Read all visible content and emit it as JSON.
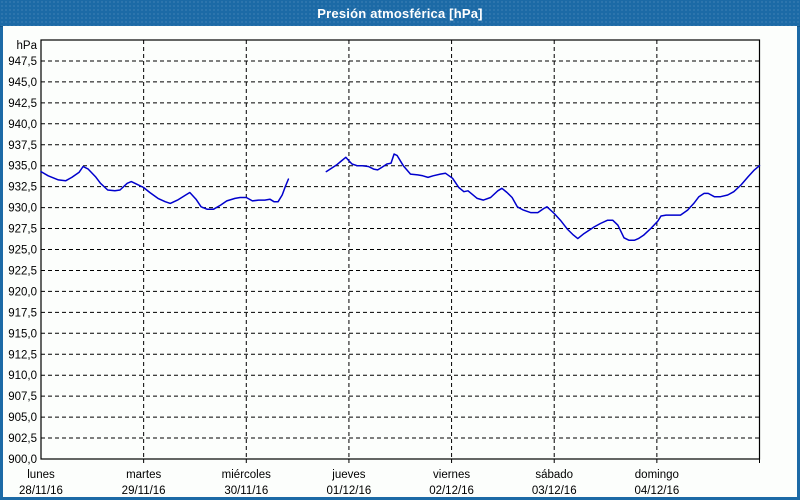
{
  "window": {
    "title": "Presión atmosférica [hPa]",
    "title_bar_color": "#1c6aa6",
    "border_color": "#1c6aa6",
    "background_color": "#fcfefc"
  },
  "chart_data": {
    "type": "line",
    "title": "Presión atmosférica [hPa]",
    "unit_label": "hPa",
    "line_color": "#0000cd",
    "grid_color": "#000000",
    "text_color": "#000000",
    "grid_style": "dashed",
    "legend_position": "none",
    "y_axis": {
      "min": 900,
      "max": 950,
      "tick_step": 2.5,
      "tick_values": [
        947.5,
        945.0,
        942.5,
        940.0,
        937.5,
        935.0,
        932.5,
        930.0,
        927.5,
        925.0,
        922.5,
        920.0,
        917.5,
        915.0,
        912.5,
        910.0,
        907.5,
        905.0,
        902.5,
        900.0
      ],
      "tick_labels": [
        "947,5",
        "945,0",
        "942,5",
        "940,0",
        "937,5",
        "935,0",
        "932,5",
        "930,0",
        "927,5",
        "925,0",
        "922,5",
        "920,0",
        "917,5",
        "915,0",
        "912,5",
        "910,0",
        "907,5",
        "905,0",
        "902,5",
        "900,0"
      ]
    },
    "x_axis": {
      "unit": "days",
      "span_days": 7,
      "days": [
        {
          "name": "lunes",
          "date": "28/11/16"
        },
        {
          "name": "martes",
          "date": "29/11/16"
        },
        {
          "name": "miércoles",
          "date": "30/11/16"
        },
        {
          "name": "jueves",
          "date": "01/12/16"
        },
        {
          "name": "viernes",
          "date": "02/12/16"
        },
        {
          "name": "sábado",
          "date": "03/12/16"
        },
        {
          "name": "domingo",
          "date": "04/12/16"
        }
      ]
    },
    "series": [
      {
        "name": "presión atmosférica",
        "segments": [
          [
            [
              0.0,
              934.3
            ],
            [
              0.07,
              933.8
            ],
            [
              0.17,
              933.3
            ],
            [
              0.24,
              933.2
            ],
            [
              0.3,
              933.6
            ],
            [
              0.37,
              934.2
            ],
            [
              0.41,
              934.9
            ],
            [
              0.46,
              934.6
            ],
            [
              0.53,
              933.7
            ],
            [
              0.58,
              932.9
            ],
            [
              0.65,
              932.1
            ],
            [
              0.72,
              932.0
            ],
            [
              0.77,
              932.1
            ],
            [
              0.84,
              932.9
            ],
            [
              0.88,
              933.1
            ],
            [
              0.93,
              932.8
            ],
            [
              1.0,
              932.4
            ],
            [
              1.06,
              931.8
            ],
            [
              1.14,
              931.1
            ],
            [
              1.21,
              930.7
            ],
            [
              1.26,
              930.5
            ],
            [
              1.33,
              930.9
            ],
            [
              1.41,
              931.5
            ],
            [
              1.45,
              931.8
            ],
            [
              1.51,
              931.0
            ],
            [
              1.56,
              930.1
            ],
            [
              1.62,
              929.8
            ],
            [
              1.68,
              929.8
            ],
            [
              1.75,
              930.3
            ],
            [
              1.81,
              930.8
            ],
            [
              1.89,
              931.1
            ],
            [
              1.94,
              931.2
            ],
            [
              2.0,
              931.2
            ],
            [
              2.06,
              930.8
            ],
            [
              2.12,
              930.9
            ],
            [
              2.18,
              930.9
            ],
            [
              2.23,
              931.0
            ],
            [
              2.27,
              930.7
            ],
            [
              2.31,
              930.7
            ],
            [
              2.35,
              931.5
            ],
            [
              2.38,
              932.5
            ],
            [
              2.41,
              933.4
            ]
          ],
          [
            [
              2.78,
              934.3
            ],
            [
              2.83,
              934.7
            ],
            [
              2.88,
              935.1
            ],
            [
              2.92,
              935.5
            ],
            [
              2.97,
              936.0
            ],
            [
              3.0,
              935.6
            ],
            [
              3.03,
              935.2
            ],
            [
              3.08,
              935.0
            ],
            [
              3.13,
              935.0
            ],
            [
              3.19,
              934.9
            ],
            [
              3.24,
              934.6
            ],
            [
              3.28,
              934.5
            ],
            [
              3.32,
              934.8
            ],
            [
              3.37,
              935.2
            ],
            [
              3.41,
              935.3
            ],
            [
              3.44,
              936.4
            ],
            [
              3.47,
              936.2
            ],
            [
              3.53,
              935.0
            ],
            [
              3.6,
              934.0
            ],
            [
              3.67,
              933.9
            ],
            [
              3.72,
              933.8
            ],
            [
              3.77,
              933.6
            ],
            [
              3.82,
              933.8
            ],
            [
              3.89,
              934.0
            ],
            [
              3.94,
              934.1
            ],
            [
              4.01,
              933.5
            ],
            [
              4.07,
              932.4
            ],
            [
              4.12,
              931.9
            ],
            [
              4.16,
              932.0
            ],
            [
              4.2,
              931.6
            ],
            [
              4.25,
              931.1
            ],
            [
              4.31,
              930.9
            ],
            [
              4.38,
              931.2
            ],
            [
              4.45,
              932.0
            ],
            [
              4.49,
              932.3
            ],
            [
              4.54,
              931.8
            ],
            [
              4.59,
              931.2
            ],
            [
              4.64,
              930.1
            ],
            [
              4.7,
              929.7
            ],
            [
              4.77,
              929.4
            ],
            [
              4.84,
              929.4
            ],
            [
              4.9,
              929.9
            ],
            [
              4.93,
              930.1
            ],
            [
              5.0,
              929.3
            ],
            [
              5.06,
              928.5
            ],
            [
              5.13,
              927.4
            ],
            [
              5.18,
              926.8
            ],
            [
              5.23,
              926.3
            ],
            [
              5.29,
              926.9
            ],
            [
              5.34,
              927.3
            ],
            [
              5.39,
              927.7
            ],
            [
              5.45,
              928.1
            ],
            [
              5.52,
              928.5
            ],
            [
              5.57,
              928.5
            ],
            [
              5.62,
              927.9
            ],
            [
              5.68,
              926.4
            ],
            [
              5.73,
              926.1
            ],
            [
              5.78,
              926.1
            ],
            [
              5.82,
              926.3
            ],
            [
              5.87,
              926.7
            ],
            [
              5.94,
              927.5
            ],
            [
              6.01,
              928.4
            ],
            [
              6.04,
              929.0
            ],
            [
              6.09,
              929.1
            ],
            [
              6.16,
              929.1
            ],
            [
              6.23,
              929.1
            ],
            [
              6.3,
              929.7
            ],
            [
              6.36,
              930.5
            ],
            [
              6.41,
              931.3
            ],
            [
              6.46,
              931.7
            ],
            [
              6.5,
              931.7
            ],
            [
              6.56,
              931.3
            ],
            [
              6.62,
              931.3
            ],
            [
              6.69,
              931.5
            ],
            [
              6.75,
              931.9
            ],
            [
              6.82,
              932.7
            ],
            [
              6.89,
              933.7
            ],
            [
              6.95,
              934.5
            ],
            [
              7.0,
              935.0
            ]
          ]
        ]
      }
    ]
  }
}
